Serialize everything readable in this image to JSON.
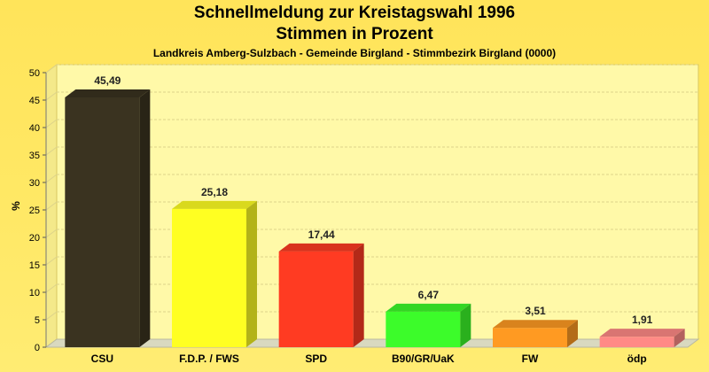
{
  "header": {
    "title": "Schnellmeldung zur Kreistagswahl 1996",
    "subtitle": "Stimmen in Prozent",
    "caption": "Landkreis Amberg-Sulzbach - Gemeinde Birgland - Stimmbezirk Birgland (0000)"
  },
  "chart_data": {
    "type": "bar",
    "title": "Schnellmeldung zur Kreistagswahl 1996",
    "subtitle": "Stimmen in Prozent",
    "caption": "Landkreis Amberg-Sulzbach - Gemeinde Birgland - Stimmbezirk Birgland (0000)",
    "xlabel": "",
    "ylabel": "%",
    "ylim": [
      0,
      50
    ],
    "yticks": [
      0,
      5,
      10,
      15,
      20,
      25,
      30,
      35,
      40,
      45,
      50
    ],
    "grid": true,
    "categories": [
      "CSU",
      "F.D.P. / FWS",
      "SPD",
      "B90/GR/UaK",
      "FW",
      "ödp"
    ],
    "values": [
      45.49,
      25.18,
      17.44,
      6.47,
      3.51,
      1.91
    ],
    "value_labels": [
      "45,49",
      "25,18",
      "17,44",
      "6,47",
      "3,51",
      "1,91"
    ],
    "colors": [
      "#3a3320",
      "#ffff22",
      "#ff3b22",
      "#3cfc2a",
      "#ff9a22",
      "#ff8a86"
    ]
  }
}
